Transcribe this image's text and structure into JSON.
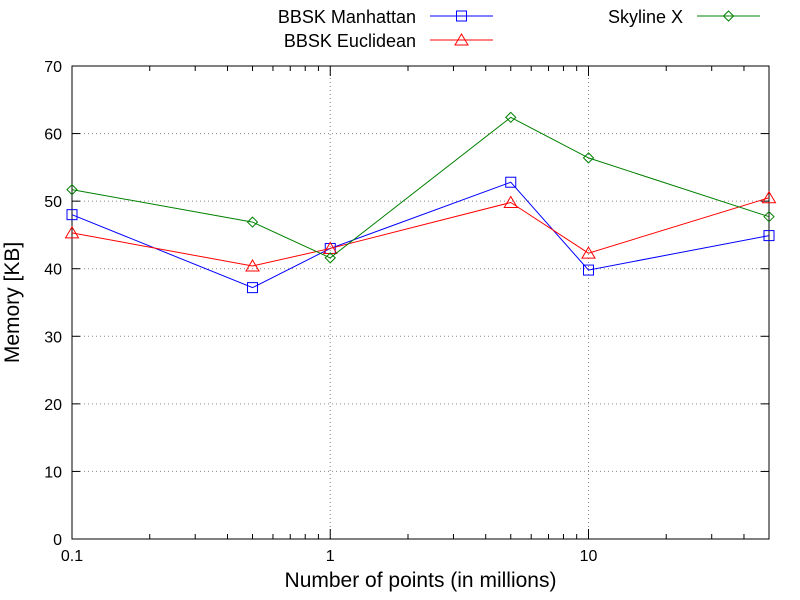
{
  "chart_data": {
    "type": "line",
    "title": "",
    "xlabel": "Number of points (in millions)",
    "ylabel": "Memory [KB]",
    "xscale": "log",
    "xlim": [
      0.1,
      50
    ],
    "ylim": [
      0,
      70
    ],
    "x_ticks": [
      0.1,
      1,
      10
    ],
    "x_tick_labels": [
      "0.1",
      "1",
      "10"
    ],
    "y_ticks": [
      0,
      10,
      20,
      30,
      40,
      50,
      60,
      70
    ],
    "y_tick_labels": [
      "0",
      "10",
      "20",
      "30",
      "40",
      "50",
      "60",
      "70"
    ],
    "grid": true,
    "legend_position": "top",
    "x": [
      0.1,
      0.5,
      1,
      5,
      10,
      50
    ],
    "series": [
      {
        "name": "BBSK Manhattan",
        "color": "#0000ff",
        "marker": "square",
        "values": [
          48.0,
          37.2,
          43.0,
          52.8,
          39.8,
          44.9
        ]
      },
      {
        "name": "BBSK Euclidean",
        "color": "#ff0000",
        "marker": "triangle",
        "values": [
          45.3,
          40.4,
          43.0,
          49.8,
          42.3,
          50.5
        ]
      },
      {
        "name": "Skyline X",
        "color": "#008000",
        "marker": "diamond",
        "values": [
          51.7,
          46.9,
          41.6,
          62.4,
          56.4,
          47.7
        ]
      }
    ]
  }
}
